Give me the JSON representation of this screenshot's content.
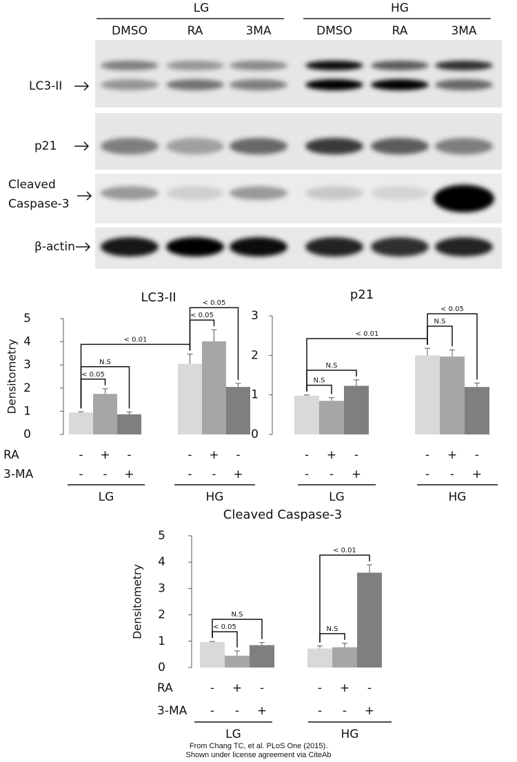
{
  "blot": {
    "groups": [
      "LG",
      "HG"
    ],
    "lanes": [
      "DMSO",
      "RA",
      "3MA",
      "DMSO",
      "RA",
      "3MA"
    ],
    "rows": [
      [
        "LC3-II"
      ],
      [
        "p21"
      ],
      [
        "Cleaved",
        "Caspase-3"
      ],
      [
        "β-actin"
      ]
    ]
  },
  "chart_data": [
    {
      "type": "bar",
      "title": "LC3-II",
      "y_label": "Densitometry",
      "ylim": [
        0,
        5
      ],
      "yticks": [
        0,
        1,
        2,
        3,
        4,
        5
      ],
      "colors": [
        "#d9d9d9",
        "#a6a6a6",
        "#7f7f7f",
        "#d9d9d9",
        "#a6a6a6",
        "#7f7f7f"
      ],
      "values": [
        0.95,
        1.75,
        0.87,
        3.05,
        4.02,
        2.05
      ],
      "errors": [
        0.03,
        0.22,
        0.1,
        0.42,
        0.5,
        0.15
      ],
      "rows": [
        {
          "label": "RA",
          "marks": [
            "-",
            "+",
            "-",
            "-",
            "+",
            "-"
          ]
        },
        {
          "label": "3-MA",
          "marks": [
            "-",
            "-",
            "+",
            "-",
            "-",
            "+"
          ]
        }
      ],
      "groups": [
        "LG",
        "HG"
      ],
      "brackets": [
        {
          "label": "< 0.05",
          "between": [
            0,
            1
          ]
        },
        {
          "label": "N.S",
          "between": [
            0,
            2
          ]
        },
        {
          "label": "< 0.01",
          "between": [
            0,
            3
          ]
        },
        {
          "label": "< 0.05",
          "between": [
            3,
            4
          ]
        },
        {
          "label": "< 0.05",
          "between": [
            3,
            5
          ]
        }
      ]
    },
    {
      "type": "bar",
      "title": "p21",
      "ylim": [
        0,
        3
      ],
      "yticks": [
        0,
        1,
        2,
        3
      ],
      "colors": [
        "#d9d9d9",
        "#a6a6a6",
        "#7f7f7f",
        "#d9d9d9",
        "#a6a6a6",
        "#7f7f7f"
      ],
      "values": [
        0.98,
        0.85,
        1.23,
        2.0,
        1.97,
        1.2
      ],
      "errors": [
        0.02,
        0.08,
        0.15,
        0.18,
        0.17,
        0.1
      ],
      "rows": [
        {
          "marks": [
            "-",
            "+",
            "-",
            "-",
            "+",
            "-"
          ]
        },
        {
          "marks": [
            "-",
            "-",
            "+",
            "-",
            "-",
            "+"
          ]
        }
      ],
      "groups": [
        "LG",
        "HG"
      ],
      "brackets": [
        {
          "label": "N.S",
          "between": [
            0,
            1
          ]
        },
        {
          "label": "N.S",
          "between": [
            0,
            2
          ]
        },
        {
          "label": "< 0.01",
          "between": [
            0,
            3
          ]
        },
        {
          "label": "N.S",
          "between": [
            3,
            4
          ]
        },
        {
          "label": "< 0.05",
          "between": [
            3,
            5
          ]
        }
      ]
    },
    {
      "type": "bar",
      "title": "Cleaved Caspase-3",
      "y_label": "Densitometry",
      "ylim": [
        0,
        5
      ],
      "yticks": [
        0,
        1,
        2,
        3,
        4,
        5
      ],
      "colors": [
        "#d9d9d9",
        "#a6a6a6",
        "#7f7f7f",
        "#d9d9d9",
        "#a6a6a6",
        "#7f7f7f"
      ],
      "values": [
        0.97,
        0.45,
        0.85,
        0.72,
        0.77,
        3.6
      ],
      "errors": [
        0.02,
        0.18,
        0.1,
        0.1,
        0.15,
        0.3
      ],
      "rows": [
        {
          "label": "RA",
          "marks": [
            "-",
            "+",
            "-",
            "-",
            "+",
            "-"
          ]
        },
        {
          "label": "3-MA",
          "marks": [
            "-",
            "-",
            "+",
            "-",
            "-",
            "+"
          ]
        }
      ],
      "groups": [
        "LG",
        "HG"
      ],
      "brackets": [
        {
          "label": "< 0.05",
          "between": [
            0,
            1
          ]
        },
        {
          "label": "N.S",
          "between": [
            0,
            2
          ]
        },
        {
          "label": "N.S",
          "between": [
            3,
            4
          ]
        },
        {
          "label": "< 0.01",
          "between": [
            3,
            5
          ]
        }
      ]
    }
  ],
  "caption": [
    "From Chang TC, et al. PLoS One (2015).",
    "Shown under license agreement via CiteAb"
  ]
}
